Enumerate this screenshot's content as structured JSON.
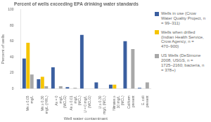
{
  "chart_data": {
    "type": "bar",
    "title": "Percent of wells exceeding EPA drinking water standards",
    "xlabel": "Well water contaminant",
    "ylabel": "Percent of wells",
    "categories": [
      "Mn ≥ 0.05\nmg/L",
      "Mn ≥ 0.30\nmg/L (HRL)",
      "As = 0\nmg/L\n(MCLG)",
      "As ≥ 0.01\nmg/L\n(MCL)",
      "U = 0 mg/L\n(MCLG)",
      "U ≥ 0.30\nmg/L (MCL)",
      "Nitrates ≥\n10 mg/L\n(MCL)",
      "Coliform\npresent",
      "E. coli\npresent"
    ],
    "series": [
      {
        "name": "Wells in use (Crow\nWater Quality Project, n\n= 99–311)",
        "color": "#3B5FA0",
        "values": [
          38,
          12,
          27,
          2,
          68,
          8,
          5,
          60,
          1
        ]
      },
      {
        "name": "Wells when drilled\n(Indian Health Service,\nCrow Agency, n =\n470–900)",
        "color": "#F5C400",
        "values": [
          58,
          15,
          0,
          0,
          0,
          0,
          5,
          0,
          0
        ]
      },
      {
        "name": "US Wells (DeSimone\n2008, USGS, n =\n1725–2160; bacteria, n\n= 378+)",
        "color": "#A8A8A8",
        "values": [
          18,
          3,
          3,
          1,
          0,
          0,
          0,
          50,
          8
        ]
      }
    ],
    "ylim": [
      0,
      100
    ],
    "yticks": [
      0,
      20,
      40,
      60,
      80,
      100
    ],
    "grid": false,
    "legend": "right"
  }
}
